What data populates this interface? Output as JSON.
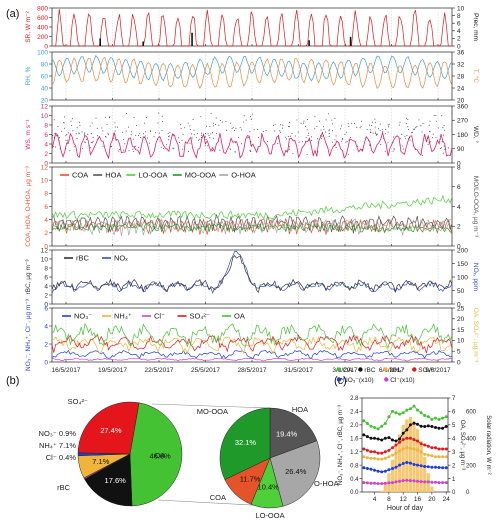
{
  "panel_letters": [
    "(a)",
    "(b)",
    "(c)"
  ],
  "colors": {
    "sr": "#e4161c",
    "prec": "#111111",
    "rh": "#3aa0dc",
    "temp": "#f08a3c",
    "ws": "#e81e6b",
    "wd": "#333333",
    "coa": "#e4532a",
    "hoa": "#555555",
    "loooa": "#4fcf3a",
    "mooa": "#1f9a2a",
    "ohoa": "#a7a7a7",
    "rbc": "#333333",
    "nox": "#2c4fd6",
    "no3": "#1f3fd6",
    "nh4": "#f0b43a",
    "cl": "#cc44cc",
    "so4": "#e4161c",
    "oa": "#45c233"
  },
  "chart_data": [
    {
      "id": "a1",
      "type": "line",
      "ylabel_left": "SR, W m⁻²",
      "ylabel_right": "Prec, mm",
      "yticks_left": [
        0,
        200,
        400,
        600,
        800
      ],
      "ylim_left": [
        0,
        800
      ],
      "yticks_right": [
        0,
        2,
        4,
        6,
        8,
        10
      ],
      "ylim_right": [
        0,
        10
      ],
      "series": [
        {
          "name": "SR",
          "axis": "left",
          "color": "#e4161c"
        },
        {
          "name": "Prec",
          "axis": "right",
          "color": "#111111"
        }
      ]
    },
    {
      "id": "a2",
      "type": "line",
      "ylabel_left": "RH, %",
      "ylabel_right": "T, °C",
      "yticks_left": [
        20,
        40,
        60,
        80,
        100
      ],
      "ylim_left": [
        20,
        100
      ],
      "yticks_right": [
        20,
        24,
        28,
        32,
        36
      ],
      "ylim_right": [
        20,
        36
      ],
      "series": [
        {
          "name": "RH",
          "axis": "left",
          "color": "#3aa0dc"
        },
        {
          "name": "T",
          "axis": "right",
          "color": "#f08a3c"
        }
      ]
    },
    {
      "id": "a3",
      "type": "scatter",
      "ylabel_left": "WS, m s⁻¹",
      "ylabel_right": "WD, °",
      "yticks_left": [
        0,
        2,
        4,
        6,
        8,
        10,
        12
      ],
      "ylim_left": [
        0,
        12
      ],
      "yticks_right": [
        0,
        90,
        180,
        270,
        360
      ],
      "ylim_right": [
        0,
        360
      ],
      "series": [
        {
          "name": "WS",
          "axis": "left",
          "color": "#e81e6b"
        },
        {
          "name": "WD",
          "axis": "right",
          "color": "#333333"
        }
      ]
    },
    {
      "id": "a4",
      "type": "line",
      "ylabel_left": "COA, HOA, O-HOA, µg m⁻³",
      "ylabel_right": "MO/LO-OOA, µg m⁻³",
      "yticks_left": [
        0,
        2,
        4,
        6,
        8,
        10,
        12
      ],
      "ylim_left": [
        0,
        12
      ],
      "yticks_right": [
        0,
        2,
        4,
        6,
        8
      ],
      "ylim_right": [
        0,
        8
      ],
      "legend": [
        "COA",
        "HOA",
        "LO-OOA",
        "MO-OOA",
        "O-HOA"
      ],
      "series": [
        {
          "name": "COA",
          "color": "#e4532a"
        },
        {
          "name": "HOA",
          "color": "#555555"
        },
        {
          "name": "LO-OOA",
          "color": "#4fcf3a"
        },
        {
          "name": "MO-OOA",
          "color": "#1f9a2a"
        },
        {
          "name": "O-HOA",
          "color": "#a7a7a7"
        }
      ]
    },
    {
      "id": "a5",
      "type": "line",
      "ylabel_left": "rBC, µg m⁻³",
      "ylabel_right": "NOₓ, ppm",
      "yticks_left": [
        0,
        2,
        4,
        6,
        8,
        10,
        12
      ],
      "ylim_left": [
        0,
        12
      ],
      "yticks_right": [
        0,
        50,
        100,
        150,
        200
      ],
      "ylim_right": [
        0,
        200
      ],
      "legend": [
        "rBC",
        "NOₓ"
      ],
      "series": [
        {
          "name": "rBC",
          "color": "#333333"
        },
        {
          "name": "NOₓ",
          "color": "#2c4fd6"
        }
      ]
    },
    {
      "id": "a6",
      "type": "line",
      "ylabel_left": "NO₃⁻, NH₄⁺, Cl⁻, µg m⁻³",
      "ylabel_right": "OA, SO₄²⁻, µg m⁻³",
      "yticks_left": [
        0,
        2,
        4,
        6
      ],
      "ylim_left": [
        0,
        6
      ],
      "yticks_right": [
        0,
        5,
        10,
        15,
        20,
        25
      ],
      "ylim_right": [
        0,
        25
      ],
      "legend": [
        "NO₃⁻",
        "NH₄⁺",
        "Cl⁻",
        "SO₄²⁻",
        "OA"
      ],
      "xticks": [
        "16/5/2017",
        "19/5/2017",
        "22/5/2017",
        "25/5/2017",
        "28/5/2017",
        "31/5/2017",
        "3/6/2017",
        "6/6/2017",
        "9/6/2017"
      ],
      "series": [
        {
          "name": "NO₃⁻",
          "color": "#1f3fd6"
        },
        {
          "name": "NH₄⁺",
          "color": "#f0b43a"
        },
        {
          "name": "Cl⁻",
          "color": "#cc44cc"
        },
        {
          "name": "SO₄²⁻",
          "color": "#e4161c"
        },
        {
          "name": "OA",
          "color": "#45c233"
        }
      ]
    },
    {
      "id": "b1",
      "type": "pie",
      "slices": [
        {
          "name": "OA",
          "value": 46.6,
          "label": "46.6%",
          "color": "#45c233"
        },
        {
          "name": "rBC",
          "value": 17.6,
          "label": "17.6%",
          "color": "#111111"
        },
        {
          "name": "Cl⁻",
          "value": 0.4,
          "label": "0.4%",
          "color": "#cc44cc"
        },
        {
          "name": "NH₄⁺",
          "value": 7.1,
          "label": "7.1%",
          "color": "#f0b43a"
        },
        {
          "name": "NO₃⁻",
          "value": 0.9,
          "label": "0.9%",
          "color": "#1f3fd6"
        },
        {
          "name": "SO₄²⁻",
          "value": 27.4,
          "label": "27.4%",
          "color": "#e4161c"
        }
      ]
    },
    {
      "id": "b2",
      "type": "pie",
      "slices": [
        {
          "name": "HOA",
          "value": 19.4,
          "label": "19.4%",
          "color": "#555555"
        },
        {
          "name": "O-HOA",
          "value": 26.4,
          "label": "26.4%",
          "color": "#a7a7a7"
        },
        {
          "name": "LO-OOA",
          "value": 10.4,
          "label": "10.4%",
          "color": "#4fcf3a"
        },
        {
          "name": "COA",
          "value": 11.7,
          "label": "11.7%",
          "color": "#e4532a"
        },
        {
          "name": "MO-OOA",
          "value": 32.1,
          "label": "32.1%",
          "color": "#1f9a2a"
        }
      ]
    },
    {
      "id": "c",
      "type": "line",
      "xlabel": "Hour of day",
      "ylabel_left": "NO₃⁻, NH₄⁺, Cl⁻, rBC, µg m⁻³",
      "ylabel_right": "OA, SO₄²⁻, µg m⁻³",
      "ylabel_right2": "Solar radiation, W m⁻²",
      "xticks": [
        4,
        8,
        12,
        16,
        20,
        24
      ],
      "yticks_left": [
        0.0,
        0.4,
        0.8,
        1.2,
        1.6,
        2.0,
        2.4,
        2.8
      ],
      "ylim_left": [
        0,
        2.8
      ],
      "yticks_right": [
        0,
        1,
        2,
        3,
        4,
        5,
        6,
        7
      ],
      "ylim_right": [
        0,
        7
      ],
      "yticks_right2": [
        0,
        200,
        400,
        600
      ],
      "ylim_right2": [
        0,
        700
      ],
      "legend": [
        "OA",
        "rBC",
        "NH₄⁺",
        "SO₄²⁻",
        "NO₃⁻(x10)",
        "Cl⁻(x10)"
      ],
      "x": [
        1,
        2,
        3,
        4,
        5,
        6,
        7,
        8,
        9,
        10,
        11,
        12,
        13,
        14,
        15,
        16,
        17,
        18,
        19,
        20,
        21,
        22,
        23,
        24
      ],
      "series": [
        {
          "name": "OA",
          "axis": "right",
          "color": "#45c233",
          "values": [
            5.3,
            5.1,
            4.9,
            4.8,
            4.7,
            4.9,
            5.1,
            5.6,
            6.0,
            5.9,
            5.8,
            5.9,
            6.1,
            6.2,
            6.4,
            6.1,
            5.9,
            5.7,
            5.6,
            5.4,
            5.5,
            5.4,
            5.5,
            5.6
          ]
        },
        {
          "name": "rBC",
          "axis": "left",
          "color": "#111111",
          "values": [
            1.7,
            1.65,
            1.6,
            1.6,
            1.58,
            1.55,
            1.6,
            1.62,
            1.55,
            1.52,
            1.58,
            1.75,
            1.85,
            2.0,
            2.05,
            2.02,
            1.96,
            1.95,
            1.97,
            1.95,
            1.92,
            1.9,
            1.9,
            1.95
          ]
        },
        {
          "name": "NH₄⁺",
          "axis": "left",
          "color": "#f0b43a",
          "values": [
            1.05,
            1.02,
            1.0,
            1.0,
            0.98,
            0.98,
            1.0,
            1.05,
            1.1,
            1.15,
            1.22,
            1.28,
            1.32,
            1.3,
            1.28,
            1.25,
            1.2,
            1.12,
            1.1,
            1.08,
            1.05,
            1.05,
            1.05,
            1.05
          ]
        },
        {
          "name": "SO₄²⁻",
          "axis": "right",
          "color": "#e4161c",
          "values": [
            3.2,
            3.1,
            3.0,
            3.0,
            2.9,
            2.9,
            3.0,
            3.1,
            3.3,
            3.5,
            3.7,
            3.9,
            4.0,
            4.0,
            3.9,
            3.8,
            3.6,
            3.5,
            3.4,
            3.3,
            3.3,
            3.2,
            3.2,
            3.2
          ]
        },
        {
          "name": "NO₃⁻(x10)",
          "axis": "left",
          "color": "#1f3fd6",
          "values": [
            0.72,
            0.7,
            0.68,
            0.65,
            0.62,
            0.6,
            0.62,
            0.66,
            0.7,
            0.74,
            0.8,
            0.85,
            0.88,
            0.86,
            0.82,
            0.8,
            0.78,
            0.76,
            0.75,
            0.74,
            0.74,
            0.73,
            0.72,
            0.72
          ]
        },
        {
          "name": "Cl⁻(x10)",
          "axis": "left",
          "color": "#cc44cc",
          "values": [
            0.28,
            0.27,
            0.26,
            0.26,
            0.25,
            0.25,
            0.26,
            0.27,
            0.28,
            0.3,
            0.32,
            0.34,
            0.35,
            0.34,
            0.33,
            0.32,
            0.31,
            0.3,
            0.3,
            0.29,
            0.29,
            0.28,
            0.28,
            0.28
          ]
        }
      ],
      "bars": {
        "name": "Solar radiation",
        "axis": "right2",
        "color": "#f6c873",
        "values": [
          0,
          0,
          0,
          0,
          0,
          10,
          60,
          140,
          240,
          340,
          430,
          500,
          540,
          560,
          530,
          470,
          380,
          260,
          140,
          40,
          0,
          0,
          0,
          0
        ]
      }
    }
  ]
}
